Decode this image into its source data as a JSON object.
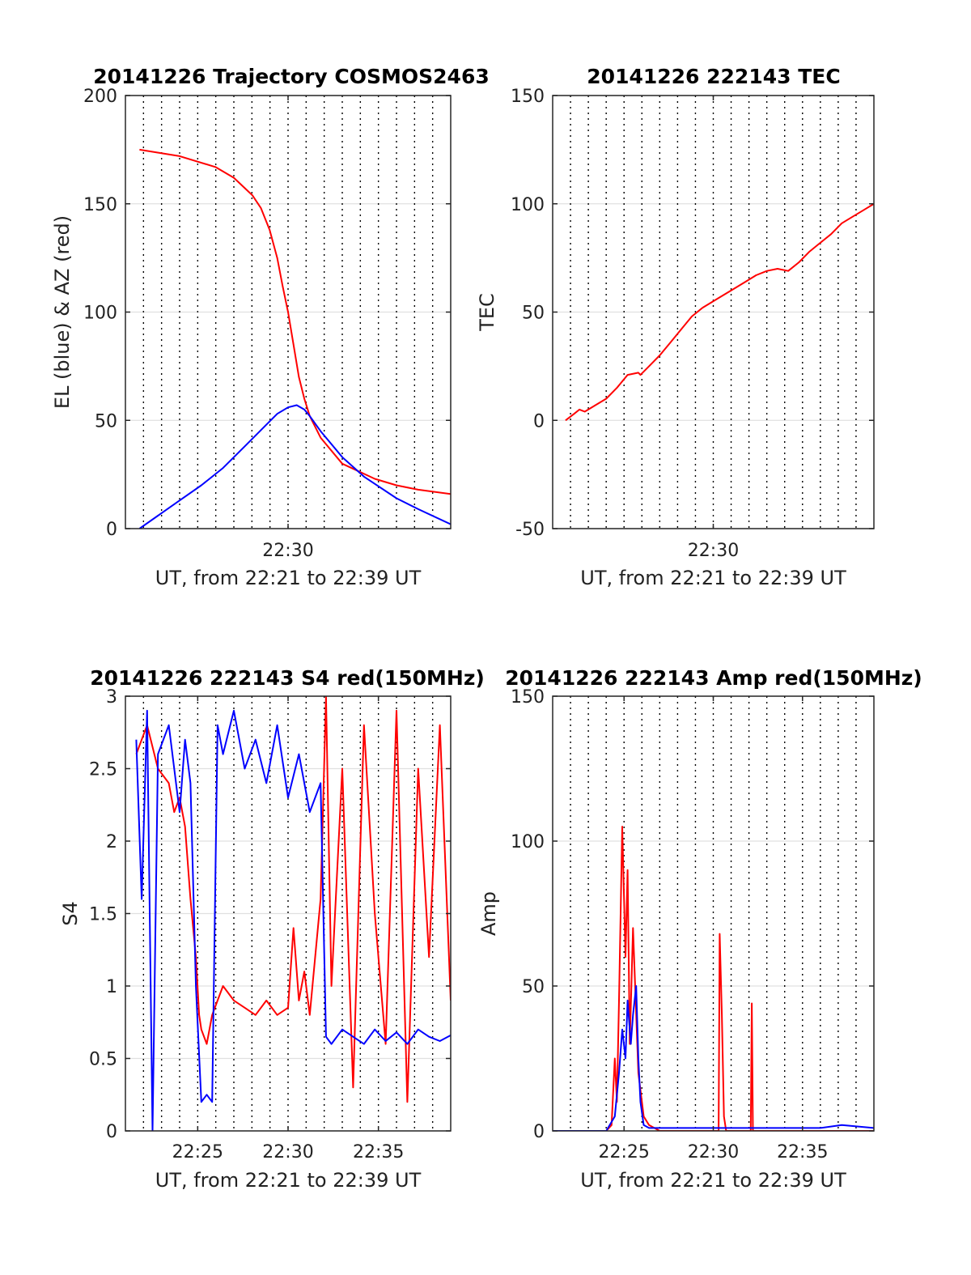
{
  "colors": {
    "red": "#ff0000",
    "blue": "#0000ff"
  },
  "chart_data": [
    {
      "type": "line",
      "title": "20141226 Trajectory COSMOS2463",
      "xlabel": "UT, from 22:21 to 22:39 UT",
      "ylabel": "EL (blue) & AZ (red)",
      "xlim": [
        22.35,
        22.65
      ],
      "ylim": [
        0,
        200
      ],
      "yticks": [
        0,
        50,
        100,
        150,
        200
      ],
      "xticks": [
        {
          "t": 22.5,
          "label": "22:30"
        }
      ],
      "grid": true,
      "series": [
        {
          "color": "red",
          "x": [
            22.363,
            22.4,
            22.433,
            22.45,
            22.467,
            22.475,
            22.483,
            22.49,
            22.495,
            22.5,
            22.505,
            22.51,
            22.515,
            22.52,
            22.53,
            22.55,
            22.58,
            22.6,
            22.62,
            22.65
          ],
          "y": [
            175,
            172,
            167,
            162,
            154,
            148,
            138,
            125,
            112,
            100,
            85,
            70,
            60,
            52,
            42,
            30,
            23,
            20,
            18,
            16
          ]
        },
        {
          "color": "blue",
          "x": [
            22.363,
            22.38,
            22.4,
            22.42,
            22.44,
            22.46,
            22.48,
            22.49,
            22.5,
            22.508,
            22.515,
            22.52,
            22.53,
            22.55,
            22.57,
            22.6,
            22.62,
            22.65
          ],
          "y": [
            0,
            6,
            13,
            20,
            28,
            38,
            48,
            53,
            56,
            57,
            55,
            52,
            45,
            33,
            24,
            14,
            9,
            2
          ]
        }
      ]
    },
    {
      "type": "line",
      "title": "20141226 222143 TEC",
      "xlabel": "UT, from 22:21 to 22:39 UT",
      "ylabel": "TEC",
      "xlim": [
        22.35,
        22.65
      ],
      "ylim": [
        -50,
        150
      ],
      "yticks": [
        -50,
        0,
        50,
        100,
        150
      ],
      "xticks": [
        {
          "t": 22.5,
          "label": "22:30"
        }
      ],
      "grid": true,
      "series": [
        {
          "color": "red",
          "x": [
            22.362,
            22.37,
            22.375,
            22.38,
            22.39,
            22.4,
            22.41,
            22.42,
            22.43,
            22.432,
            22.44,
            22.45,
            22.46,
            22.47,
            22.48,
            22.49,
            22.5,
            22.51,
            22.52,
            22.53,
            22.54,
            22.55,
            22.56,
            22.57,
            22.58,
            22.59,
            22.6,
            22.61,
            22.62,
            22.63,
            22.64,
            22.65
          ],
          "y": [
            0,
            3,
            5,
            4,
            7,
            10,
            15,
            21,
            22,
            21,
            25,
            30,
            36,
            42,
            48,
            52,
            55,
            58,
            61,
            64,
            67,
            69,
            70,
            69,
            73,
            78,
            82,
            86,
            91,
            94,
            97,
            100
          ]
        }
      ]
    },
    {
      "type": "line",
      "title": "20141226 222143 S4 red(150MHz)",
      "xlabel": "UT, from 22:21 to 22:39 UT",
      "ylabel": "S4",
      "xlim": [
        22.35,
        22.65
      ],
      "ylim": [
        0,
        3
      ],
      "yticks": [
        0,
        0.5,
        1,
        1.5,
        2,
        2.5,
        3
      ],
      "xticks": [
        {
          "t": 22.41667,
          "label": "22:25"
        },
        {
          "t": 22.5,
          "label": "22:30"
        },
        {
          "t": 22.58333,
          "label": "22:35"
        }
      ],
      "grid": true,
      "series": [
        {
          "color": "red",
          "x": [
            22.36,
            22.37,
            22.38,
            22.39,
            22.395,
            22.4,
            22.405,
            22.41,
            22.415,
            22.418,
            22.42,
            22.425,
            22.43,
            22.435,
            22.44,
            22.45,
            22.46,
            22.47,
            22.48,
            22.49,
            22.5,
            22.505,
            22.51,
            22.515,
            22.52,
            22.53,
            22.535,
            22.54,
            22.55,
            22.56,
            22.57,
            22.58,
            22.59,
            22.6,
            22.61,
            22.62,
            22.63,
            22.64,
            22.65
          ],
          "y": [
            2.6,
            2.8,
            2.5,
            2.4,
            2.2,
            2.3,
            2.1,
            1.6,
            1.2,
            0.8,
            0.7,
            0.6,
            0.8,
            0.9,
            1.0,
            0.9,
            0.85,
            0.8,
            0.9,
            0.8,
            0.85,
            1.4,
            0.9,
            1.1,
            0.8,
            1.6,
            3.0,
            1.0,
            2.5,
            0.3,
            2.8,
            1.5,
            0.6,
            2.9,
            0.2,
            2.5,
            1.2,
            2.8,
            0.9
          ]
        },
        {
          "color": "blue",
          "x": [
            22.36,
            22.365,
            22.37,
            22.375,
            22.38,
            22.39,
            22.4,
            22.405,
            22.41,
            22.415,
            22.42,
            22.425,
            22.43,
            22.435,
            22.44,
            22.45,
            22.46,
            22.47,
            22.48,
            22.49,
            22.5,
            22.51,
            22.52,
            22.53,
            22.535,
            22.54,
            22.55,
            22.56,
            22.57,
            22.58,
            22.59,
            22.6,
            22.61,
            22.62,
            22.63,
            22.64,
            22.65
          ],
          "y": [
            2.7,
            1.6,
            2.9,
            0,
            2.6,
            2.8,
            2.2,
            2.7,
            2.4,
            1.0,
            0.2,
            0.25,
            0.2,
            2.8,
            2.6,
            2.9,
            2.5,
            2.7,
            2.4,
            2.8,
            2.3,
            2.6,
            2.2,
            2.4,
            0.65,
            0.6,
            0.7,
            0.65,
            0.6,
            0.7,
            0.62,
            0.68,
            0.6,
            0.7,
            0.65,
            0.62,
            0.66
          ]
        }
      ]
    },
    {
      "type": "line",
      "title": "20141226 222143 Amp red(150MHz)",
      "xlabel": "UT, from 22:21 to 22:39 UT",
      "ylabel": "Amp",
      "xlim": [
        22.35,
        22.65
      ],
      "ylim": [
        0,
        150
      ],
      "yticks": [
        0,
        50,
        100,
        150
      ],
      "xticks": [
        {
          "t": 22.41667,
          "label": "22:25"
        },
        {
          "t": 22.5,
          "label": "22:30"
        },
        {
          "t": 22.58333,
          "label": "22:35"
        }
      ],
      "grid": true,
      "series": [
        {
          "color": "red",
          "x": [
            22.35,
            22.4,
            22.405,
            22.408,
            22.41,
            22.412,
            22.415,
            22.418,
            22.42,
            22.422,
            22.425,
            22.43,
            22.435,
            22.44,
            22.45,
            22.5,
            22.505,
            22.506,
            22.508,
            22.51,
            22.512,
            22.52,
            22.53,
            22.535,
            22.536,
            22.537,
            22.54,
            22.6,
            22.65
          ],
          "y": [
            0,
            0,
            2,
            25,
            10,
            45,
            105,
            60,
            90,
            30,
            70,
            20,
            5,
            2,
            0,
            0,
            0,
            68,
            40,
            5,
            0,
            0,
            0,
            0,
            44,
            0,
            0,
            0,
            0
          ]
        },
        {
          "color": "blue",
          "x": [
            22.35,
            22.4,
            22.408,
            22.412,
            22.415,
            22.418,
            22.42,
            22.423,
            22.425,
            22.428,
            22.43,
            22.432,
            22.435,
            22.44,
            22.5,
            22.6,
            22.62,
            22.65
          ],
          "y": [
            0,
            0,
            5,
            20,
            35,
            25,
            45,
            30,
            40,
            50,
            25,
            10,
            2,
            1,
            1,
            1,
            2,
            1
          ]
        }
      ]
    }
  ]
}
